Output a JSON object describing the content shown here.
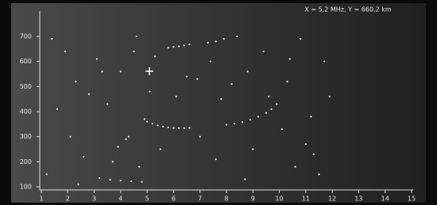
{
  "chart_data": {
    "type": "scatter",
    "header": "X = 5,2 MHz, Y = 660,2 km",
    "color": "#f4f4f4",
    "x": [
      4.9,
      5.0,
      5.2,
      5.4,
      5.6,
      5.8,
      6.0,
      6.2,
      6.4,
      6.6,
      8.0,
      8.3,
      8.6,
      8.9,
      9.2,
      9.5,
      9.7,
      5.8,
      6.0,
      6.2,
      6.4,
      6.6,
      7.3,
      7.6,
      7.9,
      3.2,
      3.6,
      4.0,
      4.4,
      4.8,
      4.2,
      4.3,
      1.4,
      1.9,
      2.3,
      2.8,
      3.1,
      3.5,
      4.0,
      4.6,
      5.1,
      5.5,
      6.9,
      7.4,
      7.8,
      8.4,
      8.8,
      9.4,
      9.9,
      10.3,
      10.8,
      11.2,
      11.7,
      1.6,
      2.1,
      2.6,
      3.3,
      3.9,
      4.7,
      5.3,
      6.1,
      7.0,
      7.6,
      8.2,
      9.0,
      9.6,
      10.1,
      10.6,
      11.0,
      11.5,
      11.9,
      1.2,
      2.4,
      3.7,
      4.5,
      6.5,
      8.7,
      10.4,
      11.3
    ],
    "values": [
      370,
      360,
      352,
      345,
      340,
      337,
      335,
      334,
      334,
      335,
      348,
      352,
      358,
      368,
      380,
      395,
      410,
      655,
      658,
      660,
      664,
      668,
      675,
      680,
      690,
      135,
      128,
      125,
      122,
      120,
      290,
      300,
      690,
      640,
      520,
      470,
      610,
      430,
      560,
      700,
      480,
      250,
      530,
      600,
      450,
      700,
      560,
      640,
      430,
      520,
      690,
      380,
      600,
      410,
      300,
      220,
      560,
      260,
      180,
      620,
      460,
      300,
      210,
      510,
      250,
      460,
      330,
      180,
      270,
      150,
      460,
      150,
      110,
      200,
      640,
      540,
      130,
      610,
      230
    ],
    "xlim": [
      1,
      15
    ],
    "xticks": [
      1,
      2,
      3,
      4,
      5,
      6,
      7,
      8,
      9,
      10,
      11,
      12,
      13,
      14,
      15
    ],
    "ylim": [
      90,
      800
    ],
    "yticks": [
      100,
      200,
      300,
      400,
      500,
      600,
      700
    ]
  }
}
